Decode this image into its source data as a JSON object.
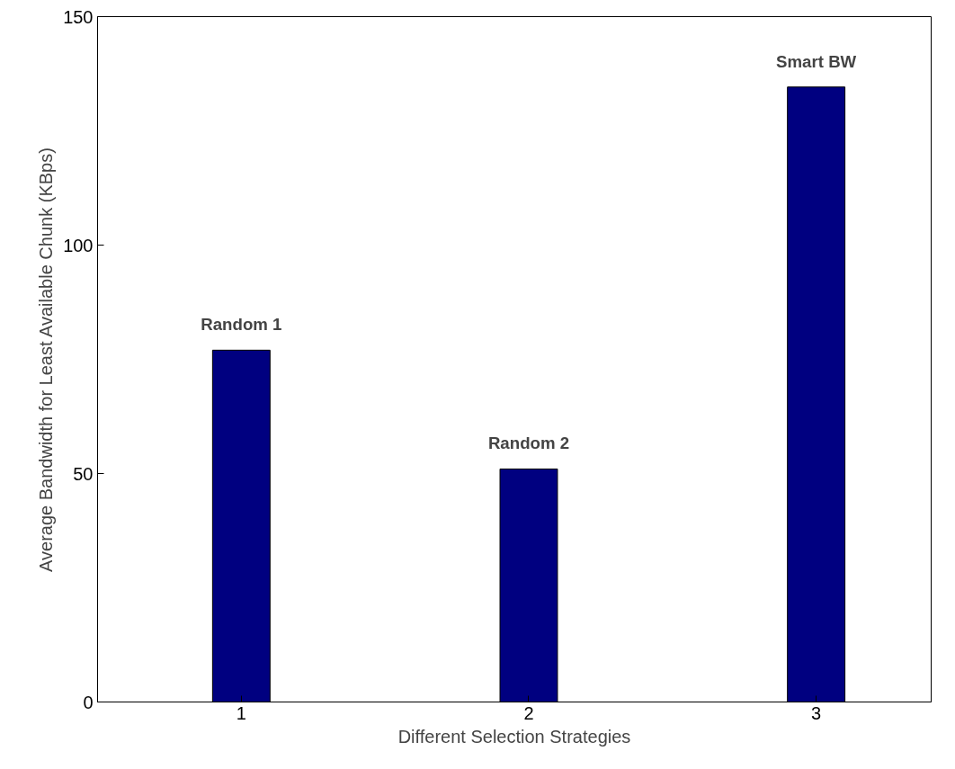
{
  "chart_data": {
    "type": "bar",
    "xlabel": "Different Selection Strategies",
    "ylabel": "Average Bandwidth for Least Available Chunk (KBps)",
    "x": [
      1,
      2,
      3
    ],
    "values": [
      77,
      51,
      134.6
    ],
    "color": "#000080",
    "xlim": [
      0.5,
      3.4
    ],
    "xticks": [
      1,
      2,
      3
    ],
    "ylim": [
      0,
      150
    ],
    "yticks": [
      0,
      50,
      100,
      150
    ],
    "grid": false,
    "annotations": [
      {
        "text": "Random 1",
        "x": 1,
        "y": 77
      },
      {
        "text": "Random 2",
        "x": 2,
        "y": 51
      },
      {
        "text": "Smart BW",
        "x": 3,
        "y": 134.6
      }
    ]
  }
}
